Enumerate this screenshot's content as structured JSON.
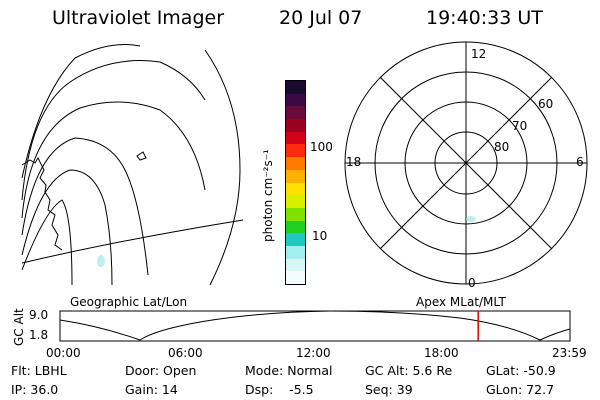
{
  "header": {
    "title": "Ultraviolet Imager",
    "date": "20 Jul 07",
    "time": "19:40:33 UT"
  },
  "colorbar": {
    "unit_label": "photon cm⁻²s⁻¹",
    "ticks": [
      "100",
      "10"
    ],
    "colors": [
      "#1a0a2e",
      "#3b0a45",
      "#6a0a3a",
      "#9b0022",
      "#d40018",
      "#ff2a10",
      "#ff7a00",
      "#ffb000",
      "#ffe000",
      "#d8f000",
      "#80e000",
      "#20d020",
      "#20c8c0",
      "#a0f0f0",
      "#d8f6f6",
      "#f4fbfb"
    ]
  },
  "left_panel": {
    "label": "Geographic Lat/Lon"
  },
  "polar_plot": {
    "label": "Apex MLat/MLT",
    "mlt_labels": [
      "12",
      "18",
      "6",
      "0"
    ],
    "lat_labels": [
      "60",
      "70",
      "80"
    ]
  },
  "timeline": {
    "y_title": "GC Alt",
    "y_ticks": [
      "9.0",
      "1.8"
    ],
    "x_ticks": [
      "00:00",
      "06:00",
      "12:00",
      "18:00",
      "23:59"
    ],
    "marker_hours": 19.68,
    "marker_color": "#e00000"
  },
  "footer": {
    "flt": "Flt: LBHL",
    "door": "Door: Open",
    "mode": "Mode: Normal",
    "gc_alt": "GC Alt: 5.6 Re",
    "glat": "GLat: -50.9",
    "ip": "IP: 36.0",
    "gain": "Gain: 14",
    "dsp": "Dsp:    -5.5",
    "seq": "Seq: 39",
    "glon": "GLon: 72.7"
  }
}
